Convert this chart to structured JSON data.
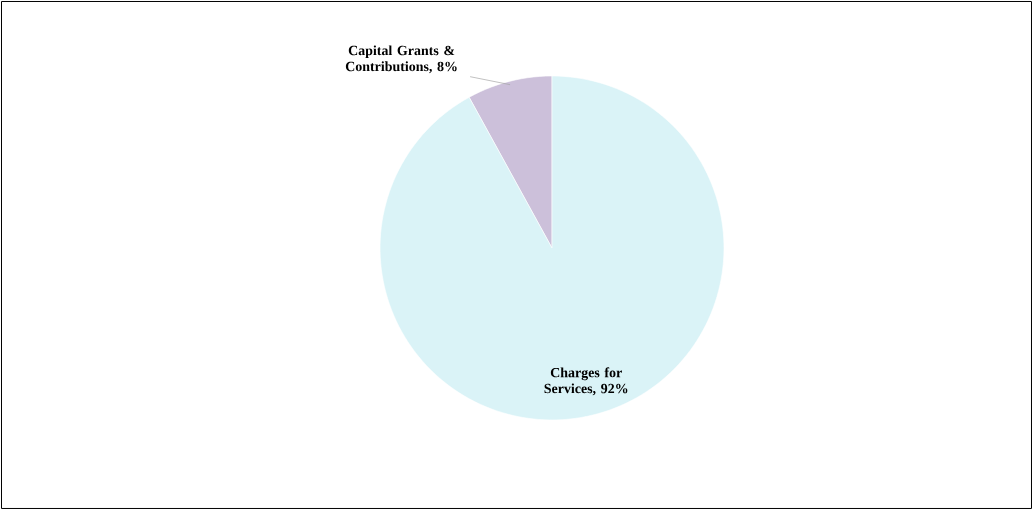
{
  "chart_data": {
    "type": "pie",
    "categories": [
      "Capital Grants & Contributions, 8%",
      "Charges for Services, 92%"
    ],
    "values": [
      8,
      92
    ],
    "colors": [
      "#ccc0da",
      "#daf3f7"
    ]
  }
}
